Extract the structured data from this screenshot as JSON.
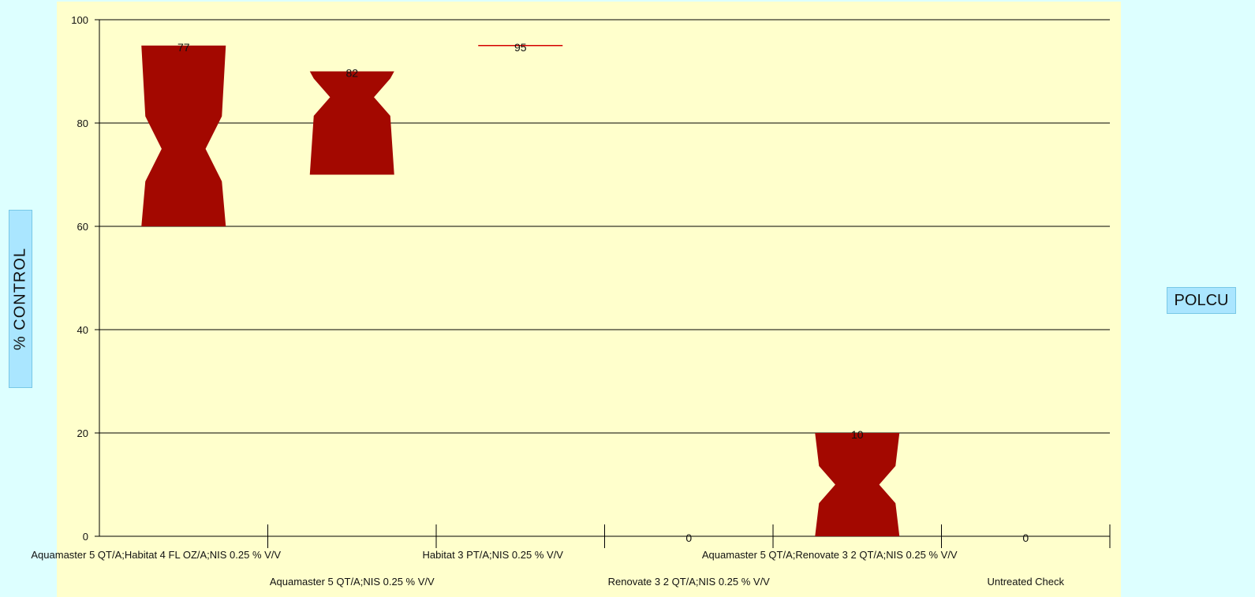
{
  "y_axis_label": "% CONTROL",
  "legend_label": "POLCU",
  "colors": {
    "page_bg": "#DDFFFF",
    "plot_bg": "#FFFFCC",
    "bar": "#A30800",
    "line_mark": "#D40000",
    "label_bg": "#AAE6FF"
  },
  "chart_data": {
    "type": "bar",
    "style": "notched-box",
    "ylim": [
      0,
      100
    ],
    "yticks": [
      0,
      20,
      40,
      60,
      80,
      100
    ],
    "grid": true,
    "categories": [
      "Aquamaster 5 QT/A;Habitat 4 FL OZ/A;NIS 0.25 % V/V",
      "Aquamaster 5 QT/A;NIS 0.25 % V/V",
      "Habitat 3 PT/A;NIS 0.25 % V/V",
      "Renovate 3 2 QT/A;NIS 0.25 % V/V",
      "Aquamaster 5 QT/A;Renovate 3 2 QT/A;NIS 0.25 % V/V",
      "Untreated Check"
    ],
    "series": [
      {
        "values": [
          77,
          82,
          95,
          0,
          10,
          0
        ],
        "low": [
          60,
          70,
          95,
          0,
          0,
          0
        ],
        "high": [
          95,
          90,
          95,
          0,
          20,
          0
        ],
        "notch": [
          75,
          85,
          95,
          0,
          10,
          0
        ]
      }
    ]
  }
}
